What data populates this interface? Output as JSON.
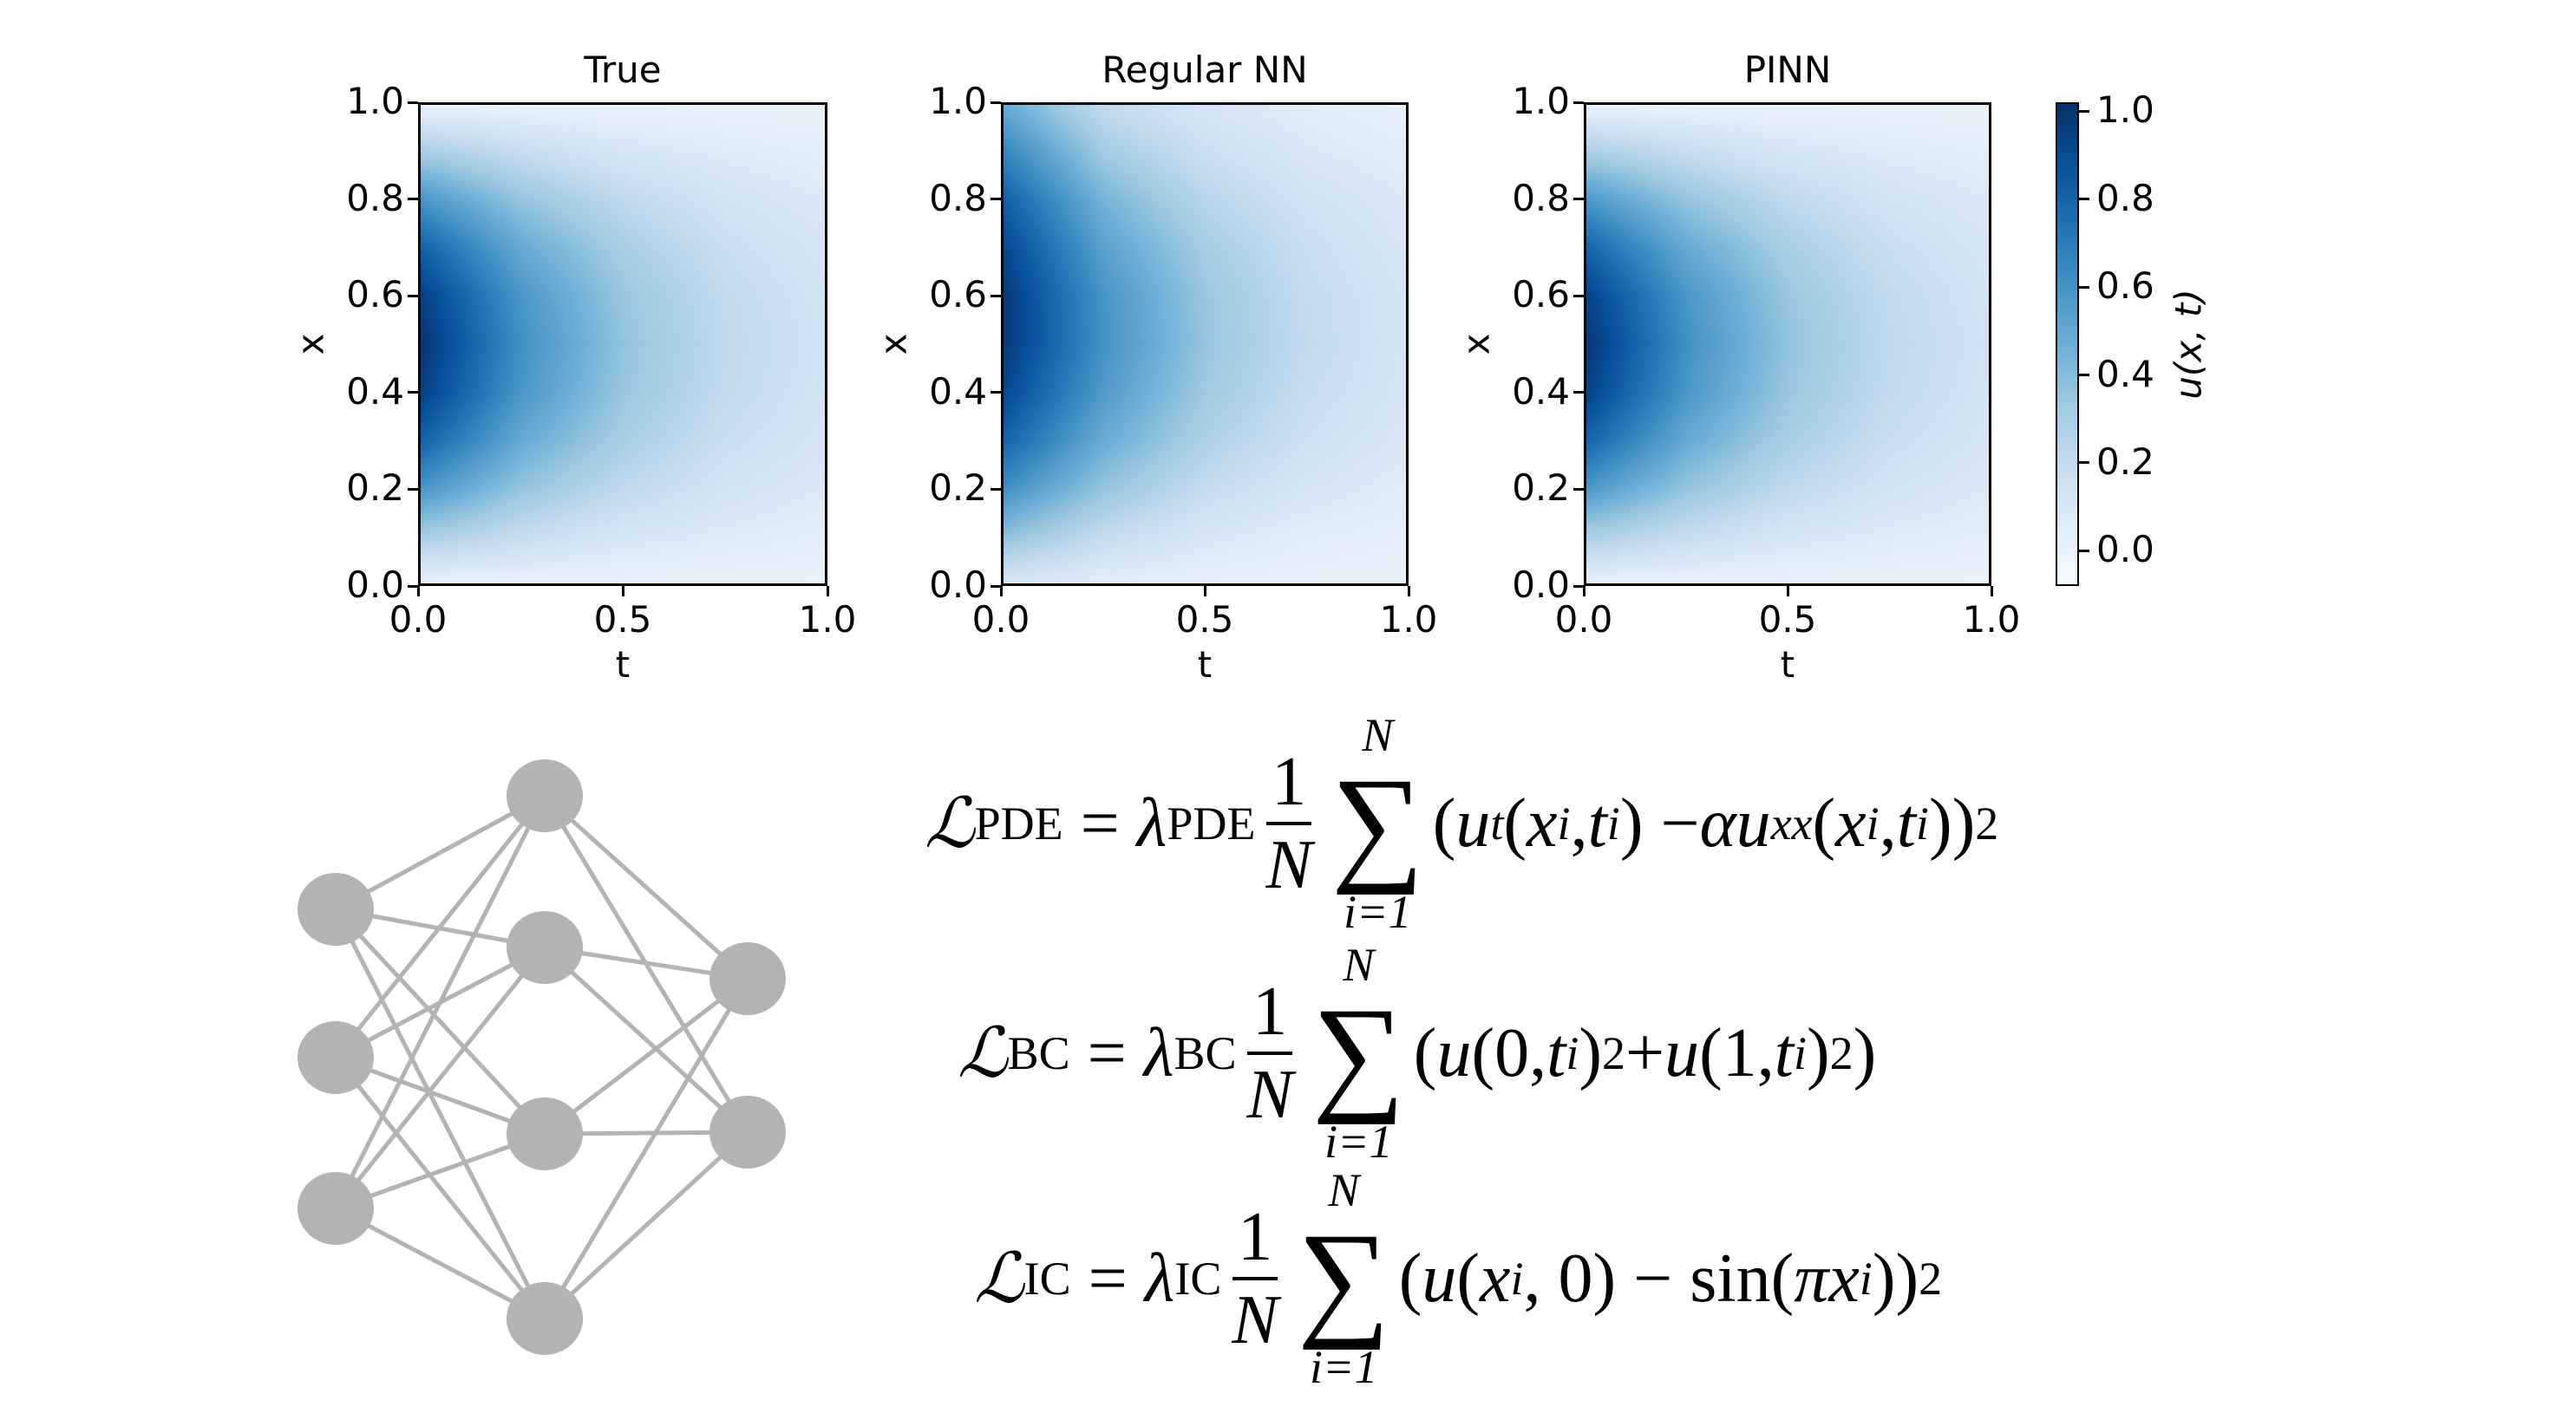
{
  "chart_data": {
    "type": "heatmap",
    "panels": [
      {
        "title": "True",
        "values": [
          [
            0,
            0,
            0,
            0,
            0
          ],
          [
            0.31,
            0.19,
            0.11,
            0.07,
            0.04
          ],
          [
            0.59,
            0.36,
            0.22,
            0.13,
            0.08
          ],
          [
            0.81,
            0.49,
            0.3,
            0.18,
            0.11
          ],
          [
            0.95,
            0.58,
            0.35,
            0.21,
            0.13
          ],
          [
            1.0,
            0.61,
            0.37,
            0.22,
            0.14
          ],
          [
            0.95,
            0.58,
            0.35,
            0.21,
            0.13
          ],
          [
            0.81,
            0.49,
            0.3,
            0.18,
            0.11
          ],
          [
            0.59,
            0.36,
            0.22,
            0.13,
            0.08
          ],
          [
            0.31,
            0.19,
            0.11,
            0.07,
            0.04
          ],
          [
            0,
            0,
            0,
            0,
            0
          ]
        ]
      },
      {
        "title": "Regular NN",
        "values": [
          [
            0.1,
            0.04,
            0.02,
            0.01,
            0.0
          ],
          [
            0.38,
            0.2,
            0.1,
            0.05,
            0.03
          ],
          [
            0.62,
            0.36,
            0.2,
            0.11,
            0.06
          ],
          [
            0.8,
            0.48,
            0.28,
            0.16,
            0.09
          ],
          [
            0.92,
            0.56,
            0.33,
            0.19,
            0.11
          ],
          [
            0.98,
            0.6,
            0.36,
            0.21,
            0.12
          ],
          [
            0.98,
            0.59,
            0.35,
            0.2,
            0.12
          ],
          [
            0.92,
            0.53,
            0.31,
            0.18,
            0.1
          ],
          [
            0.82,
            0.44,
            0.25,
            0.14,
            0.08
          ],
          [
            0.66,
            0.32,
            0.17,
            0.09,
            0.05
          ],
          [
            0.48,
            0.2,
            0.1,
            0.05,
            0.02
          ]
        ]
      },
      {
        "title": "PINN",
        "values": [
          [
            0,
            0,
            0,
            0,
            0
          ],
          [
            0.3,
            0.19,
            0.11,
            0.07,
            0.04
          ],
          [
            0.58,
            0.36,
            0.22,
            0.13,
            0.08
          ],
          [
            0.8,
            0.49,
            0.3,
            0.18,
            0.11
          ],
          [
            0.94,
            0.58,
            0.35,
            0.21,
            0.13
          ],
          [
            0.99,
            0.61,
            0.37,
            0.22,
            0.14
          ],
          [
            0.94,
            0.58,
            0.35,
            0.21,
            0.13
          ],
          [
            0.8,
            0.49,
            0.3,
            0.18,
            0.11
          ],
          [
            0.58,
            0.36,
            0.22,
            0.13,
            0.08
          ],
          [
            0.3,
            0.19,
            0.11,
            0.07,
            0.04
          ],
          [
            0,
            0,
            0,
            0,
            0
          ]
        ]
      }
    ],
    "x_grid_t": [
      0,
      0.25,
      0.5,
      0.75,
      1.0
    ],
    "y_grid_x": [
      0,
      0.1,
      0.2,
      0.3,
      0.4,
      0.5,
      0.6,
      0.7,
      0.8,
      0.9,
      1.0
    ],
    "xlabel": "t",
    "ylabel": "x",
    "xlim": [
      0,
      1
    ],
    "ylim": [
      0,
      1
    ],
    "xticks": [
      "0.0",
      "0.5",
      "1.0"
    ],
    "yticks": [
      "0.0",
      "0.2",
      "0.4",
      "0.6",
      "0.8",
      "1.0"
    ],
    "colormap": "Blues",
    "colormap_stops": [
      "#f7fbff",
      "#deebf7",
      "#c6dbef",
      "#9ecae1",
      "#6baed6",
      "#4292c6",
      "#2171b5",
      "#08519c",
      "#08306b"
    ],
    "colorbar": {
      "label": "u(x, t)",
      "range": [
        -0.08,
        1.02
      ],
      "ticks": [
        "0.0",
        "0.2",
        "0.4",
        "0.6",
        "0.8",
        "1.0"
      ]
    },
    "grid": false
  },
  "network": {
    "layers": [
      3,
      4,
      2
    ],
    "node_color": "#b3b3b3",
    "edge_color": "#b3b3b3"
  },
  "equations": [
    {
      "lhs": "ℒ",
      "lhs_sub": "PDE",
      "eq": "=",
      "lambda": "λ",
      "lambda_sub": "PDE",
      "num": "1",
      "den": "N",
      "upper": "N",
      "lower": "i=1",
      "body": [
        [
          "(",
          "r"
        ],
        [
          "u",
          "i"
        ],
        [
          "t",
          "subi"
        ],
        [
          "(",
          "r"
        ],
        [
          "x",
          "i"
        ],
        [
          "i",
          "subi"
        ],
        [
          ", ",
          "r"
        ],
        [
          "t",
          "i"
        ],
        [
          "i",
          "subi"
        ],
        [
          ") − ",
          "r"
        ],
        [
          "α",
          "i"
        ],
        [
          " u",
          "i"
        ],
        [
          "xx",
          "subi"
        ],
        [
          "(",
          "r"
        ],
        [
          "x",
          "i"
        ],
        [
          "i",
          "subi"
        ],
        [
          ", ",
          "r"
        ],
        [
          "t",
          "i"
        ],
        [
          "i",
          "subi"
        ],
        [
          "))",
          "r"
        ],
        [
          "2",
          "sup"
        ]
      ]
    },
    {
      "lhs": "ℒ",
      "lhs_sub": "BC",
      "eq": "=",
      "lambda": "λ",
      "lambda_sub": "BC",
      "num": "1",
      "den": "N",
      "upper": "N",
      "lower": "i=1",
      "body": [
        [
          "(",
          "r"
        ],
        [
          "u",
          "i"
        ],
        [
          "(0, ",
          "r"
        ],
        [
          "t",
          "i"
        ],
        [
          "i",
          "subi"
        ],
        [
          ")",
          "r"
        ],
        [
          "2",
          "sup"
        ],
        [
          " + ",
          "r"
        ],
        [
          "u",
          "i"
        ],
        [
          "(1, ",
          "r"
        ],
        [
          "t",
          "i"
        ],
        [
          "i",
          "subi"
        ],
        [
          ")",
          "r"
        ],
        [
          "2",
          "sup"
        ],
        [
          ")",
          "r"
        ]
      ]
    },
    {
      "lhs": "ℒ",
      "lhs_sub": "IC",
      "eq": "=",
      "lambda": "λ",
      "lambda_sub": "IC",
      "num": "1",
      "den": "N",
      "upper": "N",
      "lower": "i=1",
      "body": [
        [
          "(",
          "r"
        ],
        [
          "u",
          "i"
        ],
        [
          "(",
          "r"
        ],
        [
          "x",
          "i"
        ],
        [
          "i",
          "subi"
        ],
        [
          ", 0) − sin(",
          "r"
        ],
        [
          "π",
          "i"
        ],
        [
          "x",
          "i"
        ],
        [
          "i",
          "subi"
        ],
        [
          "))",
          "r"
        ],
        [
          "2",
          "sup"
        ]
      ]
    }
  ]
}
